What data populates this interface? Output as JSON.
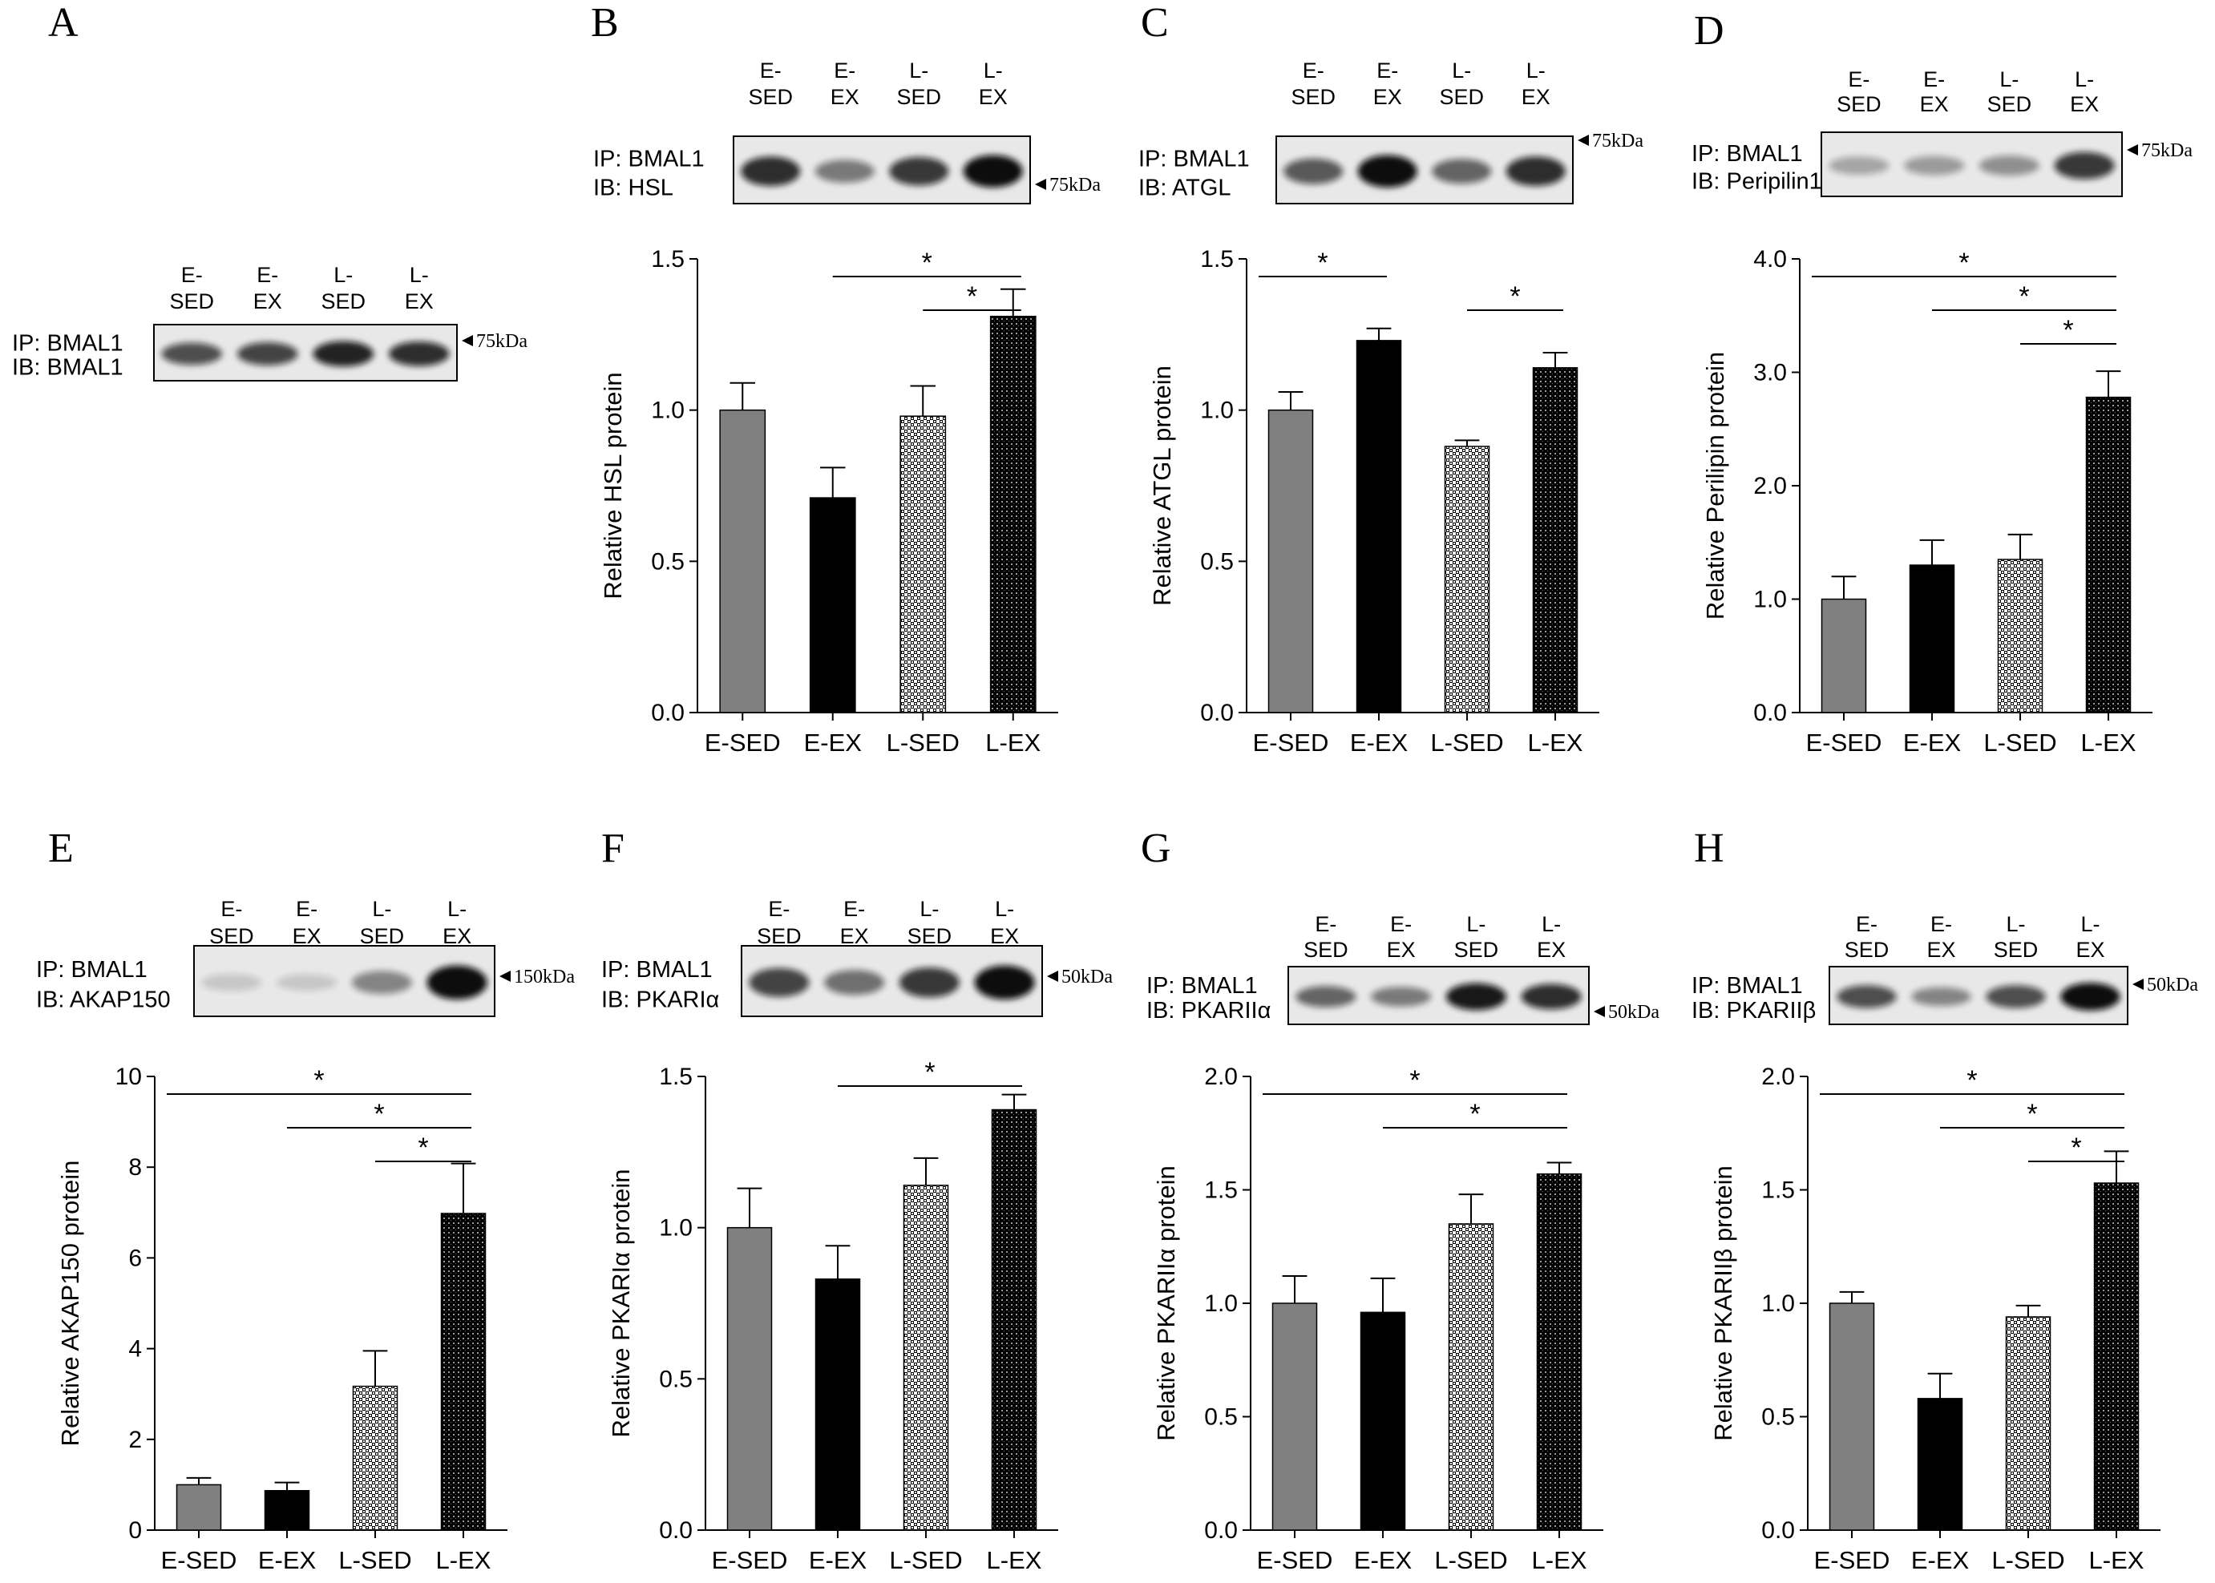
{
  "figure": {
    "panel_letters": [
      "A",
      "B",
      "C",
      "D",
      "E",
      "F",
      "G",
      "H"
    ]
  },
  "colors": {
    "gray_bar": "#808080",
    "black_bar": "#000000",
    "band_dark": "#1a1a1a",
    "frame": "#000000"
  },
  "blot_a": {
    "lanes": [
      [
        "E-",
        "SED"
      ],
      [
        "E-",
        "EX"
      ],
      [
        "L-",
        "SED"
      ],
      [
        "L-",
        "EX"
      ]
    ],
    "ip_label": "IP: BMAL1",
    "ib_label": "IB: BMAL1",
    "marker": "75kDa"
  },
  "chart_data": [
    {
      "panel": "B",
      "type": "bar",
      "title": "",
      "lanes": [
        [
          "E-",
          "SED"
        ],
        [
          "E-",
          "EX"
        ],
        [
          "L-",
          "SED"
        ],
        [
          "L-",
          "EX"
        ]
      ],
      "ip_label": "IP: BMAL1",
      "ib_label": "IB: HSL",
      "marker": "75kDa",
      "band_intensity": [
        0.85,
        0.5,
        0.8,
        1.0
      ],
      "categories": [
        "E-SED",
        "E-EX",
        "L-SED",
        "L-EX"
      ],
      "values": [
        1.0,
        0.71,
        0.98,
        1.31
      ],
      "errors": [
        0.09,
        0.1,
        0.1,
        0.09
      ],
      "ylabel": "Relative HSL protein",
      "xlabel": "",
      "ylim": [
        0,
        1.5
      ],
      "yticks": [
        "0.0",
        "0.5",
        "1.0",
        "1.5"
      ],
      "significance": [
        {
          "from": 1,
          "to": 3,
          "label": "*"
        },
        {
          "from": 2,
          "to": 3,
          "label": "*"
        }
      ]
    },
    {
      "panel": "C",
      "type": "bar",
      "title": "",
      "lanes": [
        [
          "E-",
          "SED"
        ],
        [
          "E-",
          "EX"
        ],
        [
          "L-",
          "SED"
        ],
        [
          "L-",
          "EX"
        ]
      ],
      "ip_label": "IP: BMAL1",
      "ib_label": "IB: ATGL",
      "marker": "75kDa",
      "band_intensity": [
        0.65,
        1.0,
        0.6,
        0.85
      ],
      "categories": [
        "E-SED",
        "E-EX",
        "L-SED",
        "L-EX"
      ],
      "values": [
        1.0,
        1.23,
        0.88,
        1.14
      ],
      "errors": [
        0.06,
        0.04,
        0.02,
        0.05
      ],
      "ylabel": "Relative ATGL protein",
      "xlabel": "",
      "ylim": [
        0,
        1.5
      ],
      "yticks": [
        "0.0",
        "0.5",
        "1.0",
        "1.5"
      ],
      "significance": [
        {
          "from": 0,
          "to": 1,
          "label": "*"
        },
        {
          "from": 2,
          "to": 3,
          "label": "*"
        }
      ]
    },
    {
      "panel": "D",
      "type": "bar",
      "title": "",
      "lanes": [
        [
          "E-",
          "SED"
        ],
        [
          "E-",
          "EX"
        ],
        [
          "L-",
          "SED"
        ],
        [
          "L-",
          "EX"
        ]
      ],
      "ip_label": "IP: BMAL1",
      "ib_label": "IB: Peripilin1",
      "marker": "75kDa",
      "band_intensity": [
        0.3,
        0.35,
        0.4,
        0.8
      ],
      "categories": [
        "E-SED",
        "E-EX",
        "L-SED",
        "L-EX"
      ],
      "values": [
        1.0,
        1.3,
        1.35,
        2.78
      ],
      "errors": [
        0.2,
        0.22,
        0.22,
        0.23
      ],
      "ylabel": "Relative Perilipin protein",
      "xlabel": "",
      "ylim": [
        0,
        4.0
      ],
      "yticks": [
        "0.0",
        "1.0",
        "2.0",
        "3.0",
        "4.0"
      ],
      "significance": [
        {
          "from": 0,
          "to": 3,
          "label": "*"
        },
        {
          "from": 1,
          "to": 3,
          "label": "*"
        },
        {
          "from": 2,
          "to": 3,
          "label": "*"
        }
      ]
    },
    {
      "panel": "E",
      "type": "bar",
      "title": "",
      "lanes": [
        [
          "E-",
          "SED"
        ],
        [
          "E-",
          "EX"
        ],
        [
          "L-",
          "SED"
        ],
        [
          "L-",
          "EX"
        ]
      ],
      "ip_label": "IP: BMAL1",
      "ib_label": "IB: AKAP150",
      "marker": "150kDa",
      "band_intensity": [
        0.15,
        0.12,
        0.45,
        1.0
      ],
      "categories": [
        "E-SED",
        "E-EX",
        "L-SED",
        "L-EX"
      ],
      "values": [
        1.0,
        0.87,
        3.17,
        6.98
      ],
      "errors": [
        0.15,
        0.18,
        0.78,
        1.1
      ],
      "ylabel": "Relative AKAP150 protein",
      "xlabel": "",
      "ylim": [
        0,
        10
      ],
      "yticks": [
        "0",
        "2",
        "4",
        "6",
        "8",
        "10"
      ],
      "significance": [
        {
          "from": 0,
          "to": 3,
          "label": "*"
        },
        {
          "from": 1,
          "to": 3,
          "label": "*"
        },
        {
          "from": 2,
          "to": 3,
          "label": "*"
        }
      ]
    },
    {
      "panel": "F",
      "type": "bar",
      "title": "",
      "lanes": [
        [
          "E-",
          "SED"
        ],
        [
          "E-",
          "EX"
        ],
        [
          "L-",
          "SED"
        ],
        [
          "L-",
          "EX"
        ]
      ],
      "ip_label": "IP: BMAL1",
      "ib_label": "IB: PKARIα",
      "marker": "50kDa",
      "band_intensity": [
        0.75,
        0.55,
        0.8,
        1.0
      ],
      "categories": [
        "E-SED",
        "E-EX",
        "L-SED",
        "L-EX"
      ],
      "values": [
        1.0,
        0.83,
        1.14,
        1.39
      ],
      "errors": [
        0.13,
        0.11,
        0.09,
        0.05
      ],
      "ylabel": "Relative PKARIα protein",
      "xlabel": "",
      "ylim": [
        0,
        1.5
      ],
      "yticks": [
        "0.0",
        "0.5",
        "1.0",
        "1.5"
      ],
      "significance": [
        {
          "from": 1,
          "to": 3,
          "label": "*"
        }
      ]
    },
    {
      "panel": "G",
      "type": "bar",
      "title": "",
      "lanes": [
        [
          "E-",
          "SED"
        ],
        [
          "E-",
          "EX"
        ],
        [
          "L-",
          "SED"
        ],
        [
          "L-",
          "EX"
        ]
      ],
      "ip_label": "IP: BMAL1",
      "ib_label": "IB: PKARIIα",
      "marker": "50kDa",
      "band_intensity": [
        0.6,
        0.5,
        0.95,
        0.85
      ],
      "categories": [
        "E-SED",
        "E-EX",
        "L-SED",
        "L-EX"
      ],
      "values": [
        1.0,
        0.96,
        1.35,
        1.57
      ],
      "errors": [
        0.12,
        0.15,
        0.13,
        0.05
      ],
      "ylabel": "Relative PKARIIα protein",
      "xlabel": "",
      "ylim": [
        0,
        2.0
      ],
      "yticks": [
        "0.0",
        "0.5",
        "1.0",
        "1.5",
        "2.0"
      ],
      "significance": [
        {
          "from": 0,
          "to": 3,
          "label": "*"
        },
        {
          "from": 1,
          "to": 3,
          "label": "*"
        }
      ]
    },
    {
      "panel": "H",
      "type": "bar",
      "title": "",
      "lanes": [
        [
          "E-",
          "SED"
        ],
        [
          "E-",
          "EX"
        ],
        [
          "L-",
          "SED"
        ],
        [
          "L-",
          "EX"
        ]
      ],
      "ip_label": "IP: BMAL1",
      "ib_label": "IB: PKARIIβ",
      "marker": "50kDa",
      "band_intensity": [
        0.7,
        0.45,
        0.7,
        1.0
      ],
      "categories": [
        "E-SED",
        "E-EX",
        "L-SED",
        "L-EX"
      ],
      "values": [
        1.0,
        0.58,
        0.94,
        1.53
      ],
      "errors": [
        0.05,
        0.11,
        0.05,
        0.14
      ],
      "ylabel": "Relative PKARIIβ protein",
      "xlabel": "",
      "ylim": [
        0,
        2.0
      ],
      "yticks": [
        "0.0",
        "0.5",
        "1.0",
        "1.5",
        "2.0"
      ],
      "significance": [
        {
          "from": 0,
          "to": 3,
          "label": "*"
        },
        {
          "from": 1,
          "to": 3,
          "label": "*"
        },
        {
          "from": 2,
          "to": 3,
          "label": "*"
        }
      ]
    }
  ]
}
